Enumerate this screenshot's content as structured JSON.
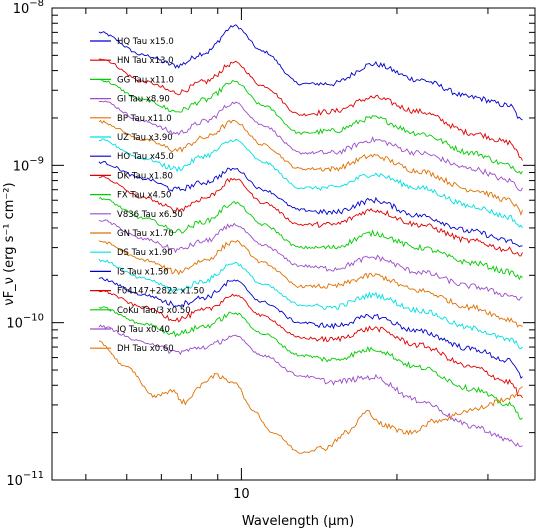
{
  "chart_data": {
    "type": "line",
    "title": "",
    "xlabel": "Wavelength (μm)",
    "ylabel": "νF_ν (erg s⁻¹ cm⁻²)",
    "xscale": "log",
    "yscale": "log",
    "xlim": [
      4.3,
      37
    ],
    "ylim": [
      1e-11,
      1e-08
    ],
    "x_tick_labels": [
      {
        "value": 10,
        "label": "10"
      }
    ],
    "y_tick_labels": [
      {
        "value": 1e-11,
        "base": "10",
        "exp": "−11"
      },
      {
        "value": 1e-10,
        "base": "10",
        "exp": "−10"
      },
      {
        "value": 1e-09,
        "base": "10",
        "exp": "−9"
      },
      {
        "value": 1e-08,
        "base": "10",
        "exp": "−8"
      }
    ],
    "grid": false,
    "legend_position": "top-left",
    "series": [
      {
        "name": "HQ Tau x15.0",
        "color": "#0000cc",
        "x": [
          5.3,
          6.5,
          7.5,
          8.5,
          9.7,
          11,
          13,
          15,
          18,
          22,
          28,
          33,
          35
        ],
        "y": [
          7e-09,
          5e-09,
          4.3e-09,
          5.2e-09,
          7.7e-09,
          5.3e-09,
          3.3e-09,
          3.3e-09,
          4.4e-09,
          3.5e-09,
          2.7e-09,
          2.4e-09,
          1.9e-09
        ]
      },
      {
        "name": "HN Tau x13.0",
        "color": "#e00000",
        "x": [
          5.3,
          6.5,
          7.5,
          8.5,
          9.7,
          11,
          13,
          15,
          18,
          22,
          28,
          33,
          35
        ],
        "y": [
          4.8e-09,
          3.4e-09,
          2.9e-09,
          3.4e-09,
          4.5e-09,
          3.2e-09,
          2.1e-09,
          2.2e-09,
          2.7e-09,
          2.2e-09,
          1.6e-09,
          1.4e-09,
          1.1e-09
        ]
      },
      {
        "name": "GG Tau x11.0",
        "color": "#00cc00",
        "x": [
          5.3,
          6.5,
          7.5,
          8.5,
          9.7,
          11,
          13,
          15,
          18,
          22,
          28,
          33,
          35
        ],
        "y": [
          3.5e-09,
          2.6e-09,
          2.2e-09,
          2.6e-09,
          3.4e-09,
          2.4e-09,
          1.6e-09,
          1.65e-09,
          2e-09,
          1.6e-09,
          1.2e-09,
          1e-09,
          9e-10
        ]
      },
      {
        "name": "GI Tau x8.90",
        "color": "#9b4dca",
        "x": [
          5.3,
          6.5,
          7.5,
          8.5,
          9.7,
          11,
          13,
          15,
          18,
          22,
          28,
          33,
          35
        ],
        "y": [
          2.6e-09,
          1.9e-09,
          1.6e-09,
          1.9e-09,
          2.5e-09,
          1.8e-09,
          1.2e-09,
          1.2e-09,
          1.45e-09,
          1.2e-09,
          9.5e-10,
          8e-10,
          7e-10
        ]
      },
      {
        "name": "BP Tau x11.0",
        "color": "#e07000",
        "x": [
          5.3,
          6.5,
          7.5,
          8.5,
          9.7,
          11,
          13,
          15,
          18,
          22,
          28,
          33,
          35
        ],
        "y": [
          1.9e-09,
          1.45e-09,
          1.25e-09,
          1.5e-09,
          1.9e-09,
          1.35e-09,
          9.5e-10,
          9.5e-10,
          1.15e-09,
          9.2e-10,
          7e-10,
          6e-10,
          5e-10
        ]
      },
      {
        "name": "UZ Tau x3.90",
        "color": "#00e0e0",
        "x": [
          5.3,
          6.5,
          7.5,
          8.5,
          9.7,
          11,
          13,
          15,
          18,
          22,
          28,
          33,
          35
        ],
        "y": [
          1.45e-09,
          1.1e-09,
          9.5e-10,
          1.15e-09,
          1.45e-09,
          1.05e-09,
          7.2e-10,
          7.2e-10,
          8.8e-10,
          7.2e-10,
          5.5e-10,
          4.7e-10,
          4e-10
        ]
      },
      {
        "name": "HO Tau x45.0",
        "color": "#0000cc",
        "x": [
          5.3,
          6.5,
          7.5,
          8.5,
          9.7,
          11,
          13,
          15,
          18,
          22,
          28,
          33,
          35
        ],
        "y": [
          1.05e-09,
          8.2e-10,
          7e-10,
          7.8e-10,
          9.5e-10,
          7e-10,
          5.2e-10,
          5e-10,
          6e-10,
          4.8e-10,
          3.8e-10,
          3.3e-10,
          3e-10
        ]
      },
      {
        "name": "DK Tau x1.80",
        "color": "#e00000",
        "x": [
          5.3,
          6.5,
          7.5,
          8.5,
          9.7,
          11,
          13,
          15,
          18,
          22,
          28,
          33,
          35
        ],
        "y": [
          8.5e-10,
          6.2e-10,
          5.2e-10,
          6.2e-10,
          8.2e-10,
          5.8e-10,
          4.2e-10,
          4.2e-10,
          5.2e-10,
          4.2e-10,
          3.3e-10,
          2.9e-10,
          2.7e-10
        ]
      },
      {
        "name": "FX Tau x4.50",
        "color": "#00cc00",
        "x": [
          5.3,
          6.5,
          7.5,
          8.5,
          9.7,
          11,
          13,
          15,
          18,
          22,
          28,
          33,
          35
        ],
        "y": [
          6.2e-10,
          4.6e-10,
          3.8e-10,
          4.4e-10,
          5.8e-10,
          4.2e-10,
          3e-10,
          3e-10,
          3.7e-10,
          3e-10,
          2.4e-10,
          2.1e-10,
          1.9e-10
        ]
      },
      {
        "name": "V836 Tau x6.50",
        "color": "#9b4dca",
        "x": [
          5.3,
          6.5,
          7.5,
          8.5,
          9.7,
          11,
          13,
          15,
          18,
          22,
          28,
          33,
          35
        ],
        "y": [
          4.5e-10,
          3.4e-10,
          2.9e-10,
          3.3e-10,
          4.2e-10,
          3.1e-10,
          2.3e-10,
          2.2e-10,
          2.6e-10,
          2.1e-10,
          1.7e-10,
          1.5e-10,
          1.4e-10
        ]
      },
      {
        "name": "GN Tau x1.70",
        "color": "#e07000",
        "x": [
          5.3,
          6.5,
          7.5,
          8.5,
          9.7,
          11,
          13,
          15,
          18,
          22,
          28,
          33,
          35
        ],
        "y": [
          3.3e-10,
          2.5e-10,
          2.1e-10,
          2.5e-10,
          3.3e-10,
          2.4e-10,
          1.7e-10,
          1.7e-10,
          2e-10,
          1.6e-10,
          1.25e-10,
          1.05e-10,
          9.5e-11
        ]
      },
      {
        "name": "DS Tau x1.90",
        "color": "#00e0e0",
        "x": [
          5.3,
          6.5,
          7.5,
          8.5,
          9.7,
          11,
          13,
          15,
          18,
          22,
          28,
          33,
          35
        ],
        "y": [
          2.5e-10,
          1.9e-10,
          1.6e-10,
          1.85e-10,
          2.4e-10,
          1.75e-10,
          1.3e-10,
          1.25e-10,
          1.5e-10,
          1.2e-10,
          9.2e-11,
          7.8e-11,
          7e-11
        ]
      },
      {
        "name": "IS Tau x1.50",
        "color": "#0000cc",
        "x": [
          5.3,
          6.5,
          7.5,
          8.5,
          9.7,
          11,
          13,
          15,
          18,
          22,
          28,
          33,
          35
        ],
        "y": [
          1.9e-10,
          1.5e-10,
          1.3e-10,
          1.45e-10,
          1.85e-10,
          1.35e-10,
          1e-10,
          9.5e-11,
          1.1e-10,
          8.8e-11,
          6.8e-11,
          5.7e-11,
          4.5e-11
        ]
      },
      {
        "name": "F04147+2822 x1.50",
        "color": "#e00000",
        "x": [
          5.3,
          6.5,
          7.5,
          8.5,
          9.7,
          11,
          13,
          15,
          18,
          22,
          28,
          33,
          35
        ],
        "y": [
          1.6e-10,
          1.25e-10,
          1.05e-10,
          1.2e-10,
          1.5e-10,
          1.1e-10,
          8e-11,
          7.8e-11,
          9.2e-11,
          7.2e-11,
          5.2e-11,
          4.2e-11,
          3.3e-11
        ]
      },
      {
        "name": "CoKu Tau/3 x0.50",
        "color": "#00cc00",
        "x": [
          5.3,
          6.5,
          7.5,
          8.5,
          9.7,
          11,
          13,
          15,
          18,
          22,
          28,
          33,
          35
        ],
        "y": [
          1.25e-10,
          9.8e-11,
          8.5e-11,
          9.5e-11,
          1.15e-10,
          8.5e-11,
          6.2e-11,
          5.8e-11,
          6.8e-11,
          5.2e-11,
          3.8e-11,
          3e-11,
          2.5e-11
        ]
      },
      {
        "name": "IQ Tau x0.40",
        "color": "#9b4dca",
        "x": [
          5.3,
          6.5,
          7.5,
          8.5,
          9.7,
          11,
          13,
          15,
          18,
          22,
          28,
          33,
          35
        ],
        "y": [
          9.5e-11,
          7.5e-11,
          6.5e-11,
          7e-11,
          8.2e-11,
          6.2e-11,
          4.6e-11,
          4.2e-11,
          4.5e-11,
          3.2e-11,
          2.2e-11,
          1.8e-11,
          1.6e-11
        ]
      },
      {
        "name": "DH Tau x0.60",
        "color": "#e07000",
        "x": [
          5.3,
          6.0,
          6.8,
          7.3,
          7.8,
          8.2,
          8.8,
          9.7,
          10.5,
          11.5,
          13,
          14.5,
          16,
          17.5,
          19,
          21,
          24,
          28,
          33,
          35
        ],
        "y": [
          7.5e-11,
          5.2e-11,
          3.4e-11,
          3.7e-11,
          3.1e-11,
          3.8e-11,
          4.6e-11,
          4.2e-11,
          2.8e-11,
          2e-11,
          1.5e-11,
          1.6e-11,
          2e-11,
          2.7e-11,
          2.2e-11,
          2e-11,
          2.4e-11,
          2.8e-11,
          3.3e-11,
          3.8e-11
        ]
      }
    ]
  }
}
